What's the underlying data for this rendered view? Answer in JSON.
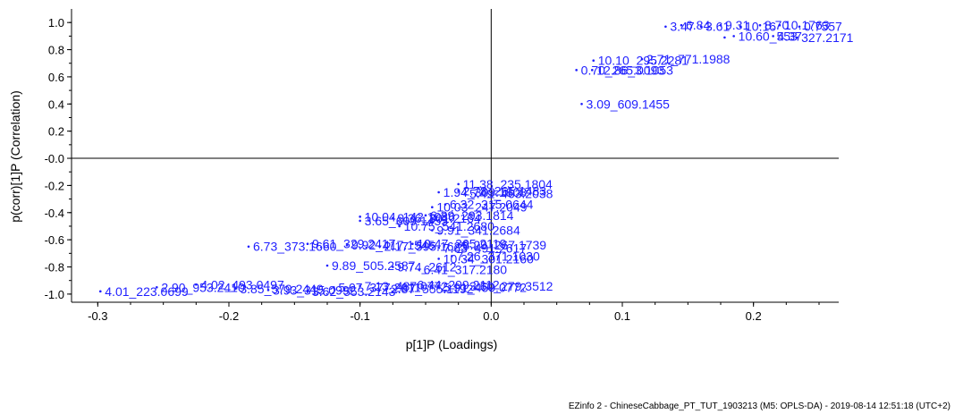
{
  "footer": "EZinfo 2 - ChineseCabbage_PT_TUT_1903213 (M5: OPLS-DA) - 2019-08-14 12:51:18 (UTC+2)",
  "colors": {
    "points": "#1f1fff",
    "axes": "#000000"
  },
  "chart_data": {
    "type": "scatter",
    "xlabel": "p[1]P (Loadings)",
    "ylabel": "p(corr)[1]P (Correlation)",
    "xlim": [
      -0.32,
      0.265
    ],
    "ylim": [
      -1.06,
      1.1
    ],
    "xticks": [
      -0.3,
      -0.2,
      -0.1,
      0.0,
      0.1,
      0.2
    ],
    "xtick_labels": [
      "-0.3",
      "-0.2",
      "-0.1",
      "0.0",
      "0.1",
      "0.2"
    ],
    "yticks": [
      1.0,
      0.8,
      0.6,
      0.4,
      0.2,
      0.0,
      -0.2,
      -0.4,
      -0.6,
      -0.8,
      -1.0
    ],
    "ytick_labels": [
      "1.0",
      "0.8",
      "0.6",
      "0.4",
      "0.2",
      "-0.0",
      "-0.2",
      "-0.4",
      "-0.6",
      "-0.8",
      "-1.0"
    ],
    "grid": false,
    "zero_lines": true,
    "points": [
      {
        "x": 0.069,
        "y": 0.4,
        "label": "3.09_609.1455"
      },
      {
        "x": 0.078,
        "y": 0.72,
        "label": "10.10_295.2281"
      },
      {
        "x": 0.065,
        "y": 0.65,
        "label": "0.70_265.0093"
      },
      {
        "x": 0.077,
        "y": 0.65,
        "label": "12.86_3.1053"
      },
      {
        "x": 0.115,
        "y": 0.73,
        "label": "2.71_771.1988"
      },
      {
        "x": 0.133,
        "y": 0.97,
        "label": "3.47"
      },
      {
        "x": 0.145,
        "y": 0.98,
        "label": "6.84"
      },
      {
        "x": 0.16,
        "y": 0.97,
        "label": "3.61"
      },
      {
        "x": 0.175,
        "y": 0.98,
        "label": "9.31"
      },
      {
        "x": 0.19,
        "y": 0.97,
        "label": "10.16"
      },
      {
        "x": 0.205,
        "y": 0.98,
        "label": "8.70"
      },
      {
        "x": 0.22,
        "y": 0.98,
        "label": "10.1763"
      },
      {
        "x": 0.235,
        "y": 0.97,
        "label": "0.7557"
      },
      {
        "x": 0.185,
        "y": 0.9,
        "label": "10.60_553"
      },
      {
        "x": 0.215,
        "y": 0.9,
        "label": "4.37"
      },
      {
        "x": 0.233,
        "y": 0.89,
        "label": "327.2171"
      },
      {
        "x": 0.178,
        "y": 0.89,
        "label": ""
      },
      {
        "x": -0.298,
        "y": -0.98,
        "label": "4.01_223.0699"
      },
      {
        "x": -0.255,
        "y": -0.95,
        "label": "2.90_953.2410"
      },
      {
        "x": -0.225,
        "y": -0.93,
        "label": "4.02_493.0497"
      },
      {
        "x": -0.195,
        "y": -0.96,
        "label": "3.85_579.2449"
      },
      {
        "x": -0.17,
        "y": -0.97,
        "label": "3.93_315.0992"
      },
      {
        "x": -0.14,
        "y": -0.98,
        "label": "3.62_553.2143"
      },
      {
        "x": -0.12,
        "y": -0.95,
        "label": "5.07_377.2611"
      },
      {
        "x": -0.1,
        "y": -0.94,
        "label": "7.13_487.0772"
      },
      {
        "x": -0.08,
        "y": -0.96,
        "label": "2.87_555.1192"
      },
      {
        "x": -0.06,
        "y": -0.93,
        "label": "6.44_299.2112"
      },
      {
        "x": -0.04,
        "y": -0.95,
        "label": "5.91_459.0772"
      },
      {
        "x": -0.02,
        "y": -0.94,
        "label": "3.60_279.3512"
      },
      {
        "x": -0.125,
        "y": -0.79,
        "label": "9.89_505.2587"
      },
      {
        "x": -0.075,
        "y": -0.8,
        "label": "9.74_2612"
      },
      {
        "x": -0.055,
        "y": -0.82,
        "label": "6.41_317.2180"
      },
      {
        "x": -0.04,
        "y": -0.74,
        "label": "10.34_301.2160"
      },
      {
        "x": -0.03,
        "y": -0.72,
        "label": "7.26_371.1030"
      },
      {
        "x": -0.185,
        "y": -0.65,
        "label": "6.73_373.1660"
      },
      {
        "x": -0.14,
        "y": -0.63,
        "label": "9.61_329.2417"
      },
      {
        "x": -0.11,
        "y": -0.64,
        "label": "9.92_417.1545"
      },
      {
        "x": -0.085,
        "y": -0.65,
        "label": "2.17_595.1625"
      },
      {
        "x": -0.06,
        "y": -0.63,
        "label": "10.47_365.2119"
      },
      {
        "x": -0.04,
        "y": -0.66,
        "label": "7.63_491.2617"
      },
      {
        "x": -0.025,
        "y": -0.64,
        "label": "8.29_267.1739"
      },
      {
        "x": -0.1,
        "y": -0.46,
        "label": "3.65_609.1455"
      },
      {
        "x": -0.07,
        "y": -0.5,
        "label": "10.75_541.2680"
      },
      {
        "x": -0.045,
        "y": -0.53,
        "label": "9.91_341.2684"
      },
      {
        "x": -0.1,
        "y": -0.43,
        "label": "10.04_142.1086"
      },
      {
        "x": -0.075,
        "y": -0.44,
        "label": "9.36_301.2164"
      },
      {
        "x": -0.05,
        "y": -0.42,
        "label": "6.39_293.1814"
      },
      {
        "x": -0.045,
        "y": -0.36,
        "label": "10.03_247.2049"
      },
      {
        "x": -0.035,
        "y": -0.34,
        "label": "6.32_315.0644"
      },
      {
        "x": -0.04,
        "y": -0.25,
        "label": "1.94_309.1808"
      },
      {
        "x": -0.025,
        "y": -0.24,
        "label": "2.78_265.1483"
      },
      {
        "x": -0.02,
        "y": -0.26,
        "label": "5.49_463.2038"
      },
      {
        "x": -0.025,
        "y": -0.19,
        "label": "11.38_235.1804"
      }
    ]
  }
}
